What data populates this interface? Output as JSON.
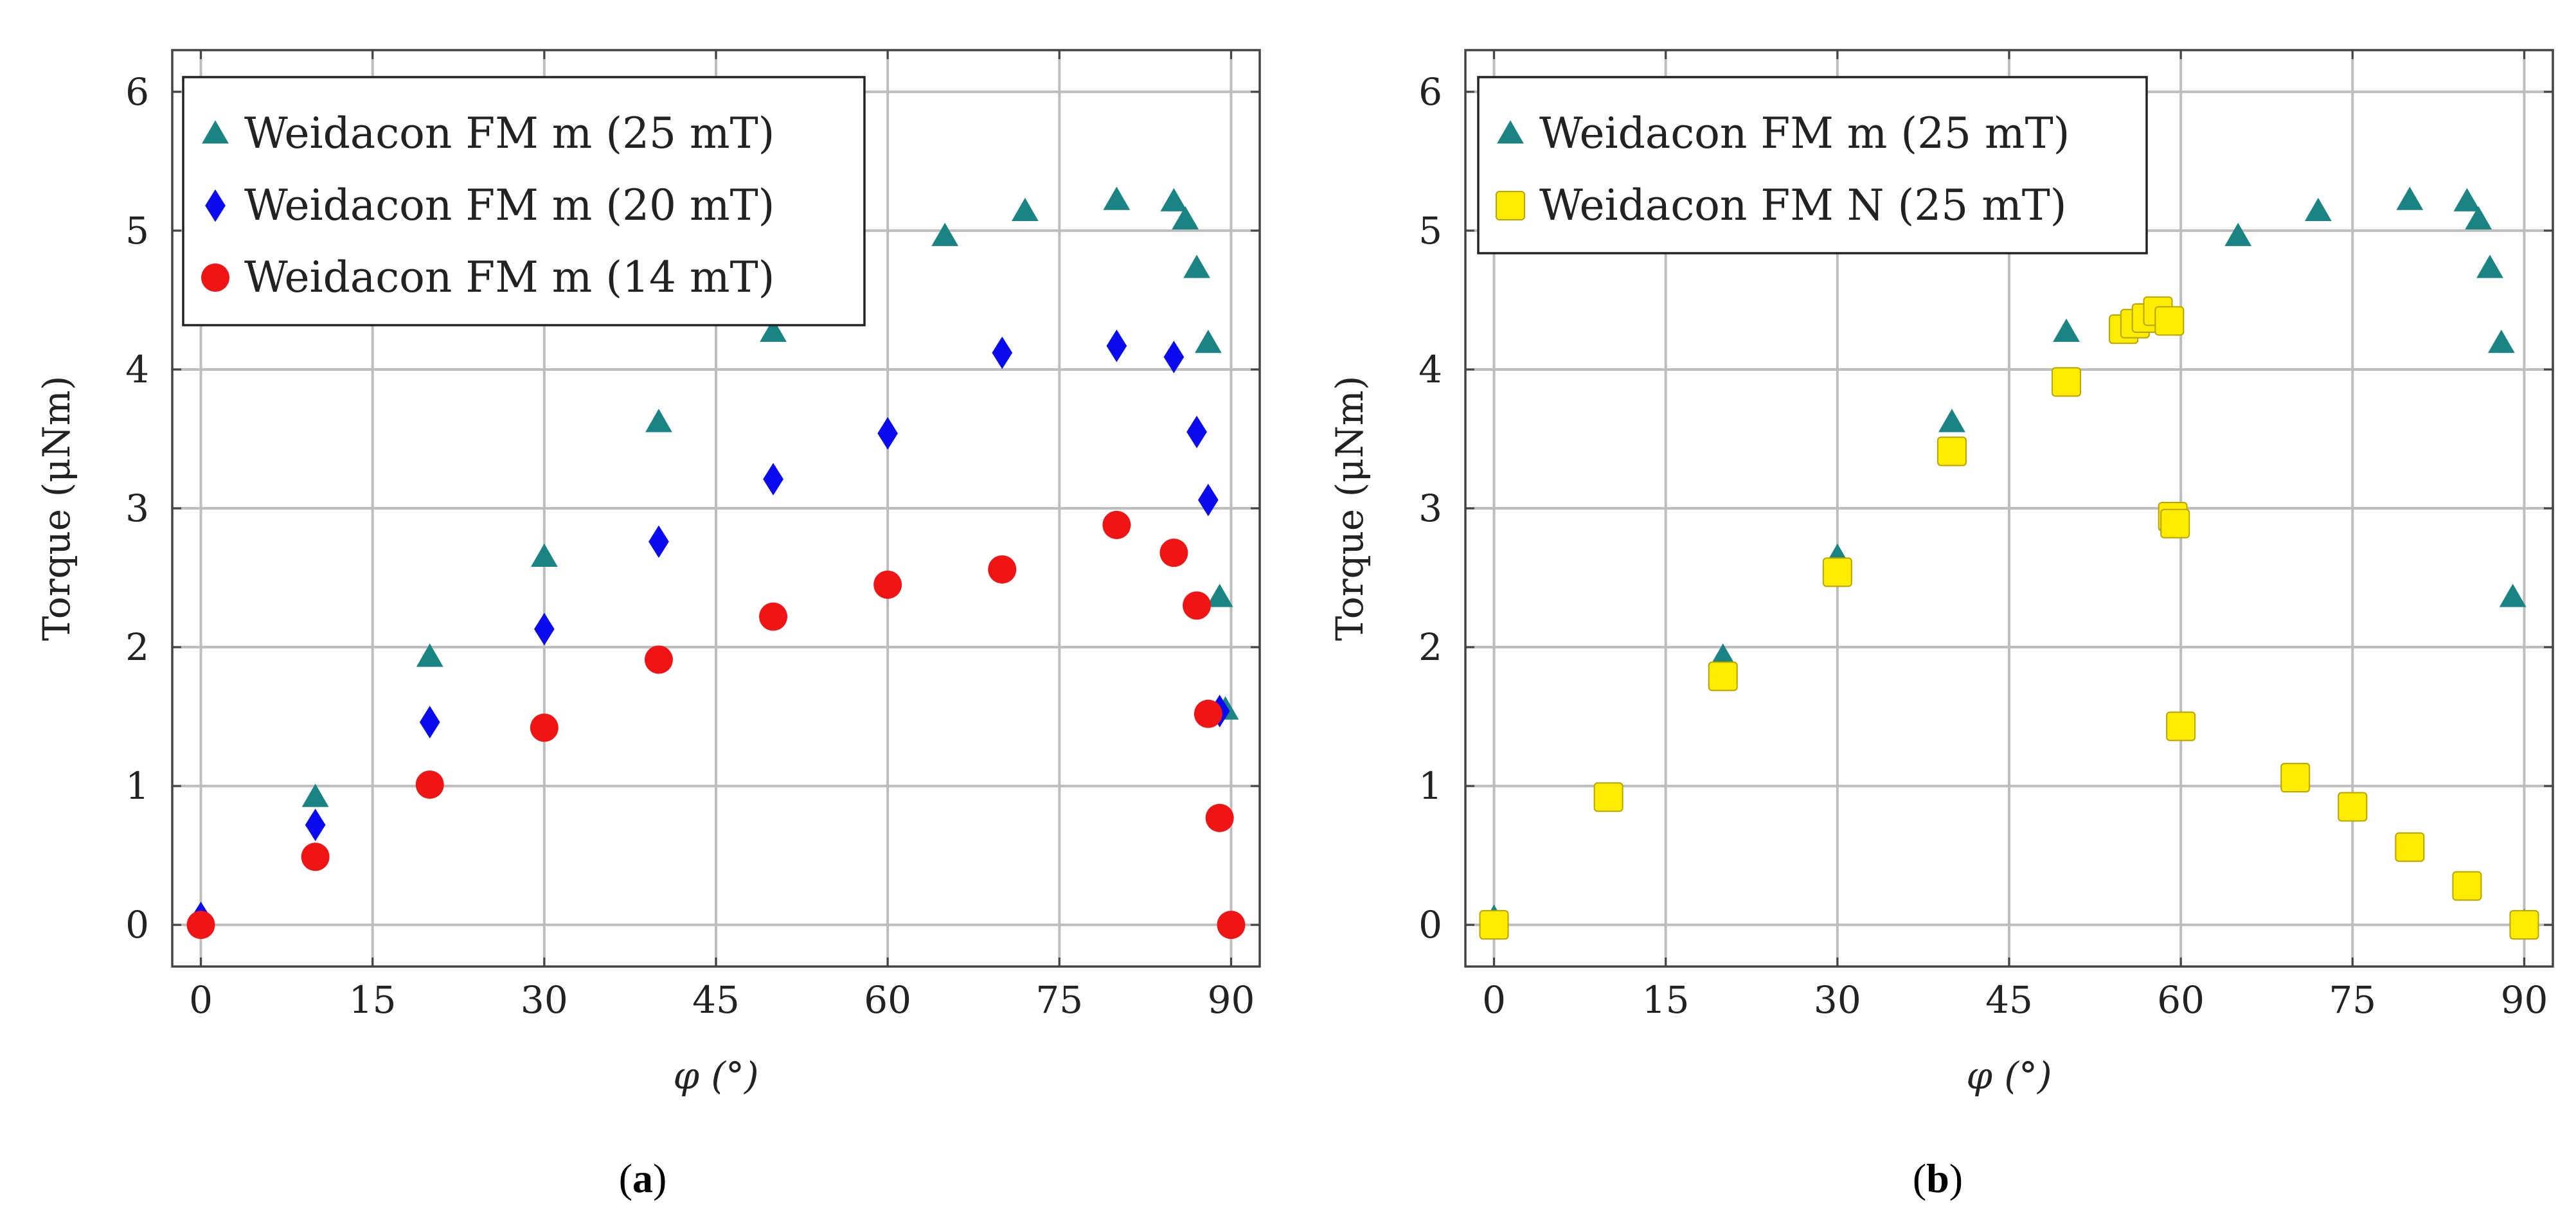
{
  "colors": {
    "teal": "#1a8383",
    "blue": "#0a0aee",
    "red": "#f01414",
    "yellow": "#ffec00",
    "grid": "#bdbdbd",
    "axis": "#444444"
  },
  "chart_data": [
    {
      "type": "scatter",
      "panel_label": {
        "open": "(",
        "letter": "a",
        "close": ")"
      },
      "xlabel": "φ (°)",
      "ylabel": "Torque (μNm)",
      "xlim": [
        -2.5,
        92.5
      ],
      "ylim": [
        -0.3,
        6.3
      ],
      "xticks": [
        0,
        15,
        30,
        45,
        60,
        75,
        90
      ],
      "yticks": [
        0,
        1,
        2,
        3,
        4,
        5,
        6
      ],
      "grid": true,
      "legend_position": "top-left",
      "series": [
        {
          "name": "Weidacon FM m (25 mT)",
          "marker": "triangle",
          "color": "#1a8383",
          "x": [
            0,
            10,
            20,
            30,
            40,
            50,
            65,
            72,
            80,
            85,
            86,
            87,
            88,
            89,
            89.5
          ],
          "y": [
            0.05,
            0.92,
            1.93,
            2.65,
            3.62,
            4.27,
            4.96,
            5.14,
            5.22,
            5.21,
            5.08,
            4.73,
            4.19,
            2.36,
            1.55
          ]
        },
        {
          "name": "Weidacon FM m (20 mT)",
          "marker": "diamond",
          "color": "#0a0aee",
          "x": [
            0,
            10,
            20,
            30,
            40,
            50,
            60,
            70,
            80,
            85,
            87,
            88,
            89
          ],
          "y": [
            0.05,
            0.72,
            1.46,
            2.13,
            2.76,
            3.21,
            3.54,
            4.12,
            4.17,
            4.09,
            3.55,
            3.06,
            1.54
          ]
        },
        {
          "name": "Weidacon FM m (14 mT)",
          "marker": "circle",
          "color": "#f01414",
          "x": [
            0,
            10,
            20,
            30,
            40,
            50,
            60,
            70,
            80,
            85,
            87,
            88,
            89,
            90
          ],
          "y": [
            0.0,
            0.49,
            1.01,
            1.42,
            1.91,
            2.22,
            2.45,
            2.56,
            2.88,
            2.68,
            2.3,
            1.52,
            0.77,
            0.0
          ]
        }
      ]
    },
    {
      "type": "scatter",
      "panel_label": {
        "open": "(",
        "letter": "b",
        "close": ")"
      },
      "xlabel": "φ (°)",
      "ylabel": "Torque (μNm)",
      "xlim": [
        -2.5,
        92.5
      ],
      "ylim": [
        -0.3,
        6.3
      ],
      "xticks": [
        0,
        15,
        30,
        45,
        60,
        75,
        90
      ],
      "yticks": [
        0,
        1,
        2,
        3,
        4,
        5,
        6
      ],
      "grid": true,
      "legend_position": "top-left",
      "series": [
        {
          "name": "Weidacon FM m (25 mT)",
          "marker": "triangle",
          "color": "#1a8383",
          "x": [
            0,
            20,
            30,
            40,
            50,
            65,
            72,
            80,
            85,
            86,
            87,
            88,
            89,
            90
          ],
          "y": [
            0.05,
            1.93,
            2.65,
            3.62,
            4.27,
            4.96,
            5.14,
            5.22,
            5.21,
            5.08,
            4.73,
            4.19,
            2.36,
            0.02
          ]
        },
        {
          "name": "Weidacon FM N (25 mT)",
          "marker": "square",
          "color": "#ffec00",
          "x": [
            0,
            10,
            20,
            30,
            40,
            50,
            55,
            56,
            57,
            58,
            59,
            59.3,
            59.5,
            60,
            70,
            75,
            80,
            85,
            90
          ],
          "y": [
            0.0,
            0.92,
            1.79,
            2.54,
            3.41,
            3.91,
            4.29,
            4.33,
            4.37,
            4.42,
            4.35,
            2.94,
            2.89,
            1.43,
            1.06,
            0.85,
            0.56,
            0.28,
            0.0
          ]
        }
      ]
    }
  ]
}
